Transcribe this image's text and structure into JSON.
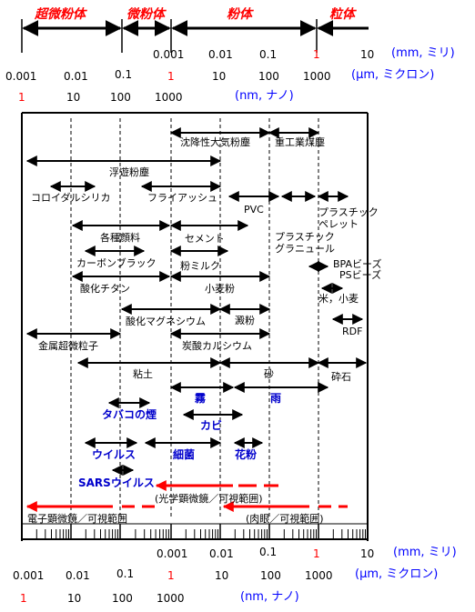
{
  "header": {
    "categories": [
      "超微粉体",
      "微粉体",
      "粉体",
      "粒体"
    ]
  },
  "scales": {
    "mm": {
      "values": [
        "0.001",
        "0.01",
        "0.1",
        "1",
        "10"
      ],
      "unit": "(mm, ミリ)"
    },
    "um": {
      "values": [
        "0.001",
        "0.01",
        "0.1",
        "1",
        "10",
        "100",
        "1000"
      ],
      "unit": "(μm, ミクロン)"
    },
    "nm": {
      "values": [
        "1",
        "10",
        "100",
        "1000"
      ],
      "unit": "(nm, ナノ)"
    }
  },
  "particles": [
    "沈降性大気粉塵",
    "重工業煤塵",
    "浮遊粉塵",
    "コロイダルシリカ",
    "フライアッシュ",
    "PVC",
    "プラスチック",
    "ペレット",
    "プラスチック",
    "グラニュール",
    "各種顔料",
    "セメント",
    "カーボンブラック",
    "粉ミルク",
    "BPAビーズ",
    "PSビーズ",
    "酸化チタン",
    "小麦粉",
    "米，小麦",
    "酸化マグネシウム",
    "澱粉",
    "RDF",
    "金属超微粒子",
    "炭酸カルシウム",
    "粘土",
    "砂",
    "砕石"
  ],
  "biologicals": [
    "霧",
    "雨",
    "タバコの煙",
    "カビ",
    "ウイルス",
    "細菌",
    "花粉",
    "SARSウイルス"
  ],
  "ranges": {
    "optical_microscope": "(光学顕微鏡／可視範囲)",
    "electron_microscope": "電子顕微鏡／可視範囲",
    "naked_eye": "(肉眼／可視範囲)"
  },
  "colors": {
    "accent_red": "#ff0000",
    "blue_text": "#0000ff",
    "bold_blue": "#0000cc"
  }
}
